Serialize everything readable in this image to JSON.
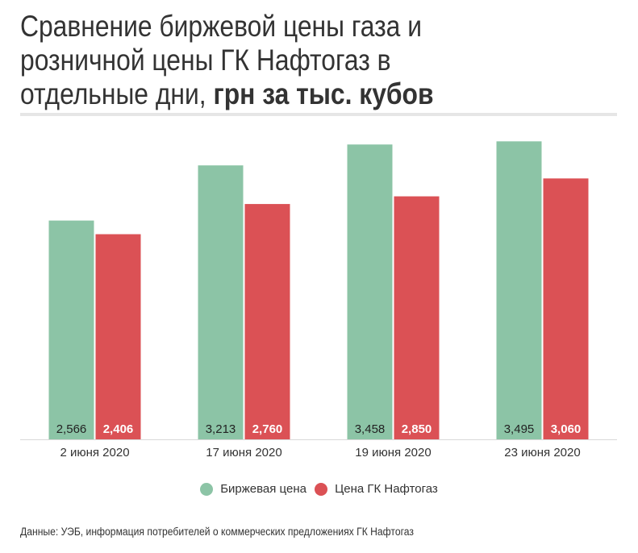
{
  "title": {
    "regular": "Сравнение биржевой цены газа и розничной цены ГК Нафтогаз в отдельные дни,",
    "line1": "Сравнение биржевой цены газа и",
    "line2": "розничной цены ГК Нафтогаз в",
    "line3": "отдельные дни,",
    "bold": "грн за тыс. кубов"
  },
  "source": "Данные: УЭБ, информация потребителей о коммерческих предложениях ГК Нафтогаз",
  "chart_data": {
    "type": "bar",
    "categories": [
      "2 июня 2020",
      "17 июня 2020",
      "19 июня 2020",
      "23 июня 2020"
    ],
    "series": [
      {
        "name": "Биржевая цена",
        "color": "#8cc4a6",
        "values": [
          2566,
          3213,
          3458,
          3495
        ],
        "labels": [
          "2,566",
          "3,213",
          "3,458",
          "3,495"
        ]
      },
      {
        "name": "Цена ГК Нафтогаз",
        "color": "#db5155",
        "values": [
          2406,
          2760,
          2850,
          3060
        ],
        "labels": [
          "2,406",
          "2,760",
          "2,850",
          "3,060"
        ]
      }
    ],
    "ylim": [
      0,
      3640
    ],
    "grid": false,
    "legend": "bottom"
  }
}
